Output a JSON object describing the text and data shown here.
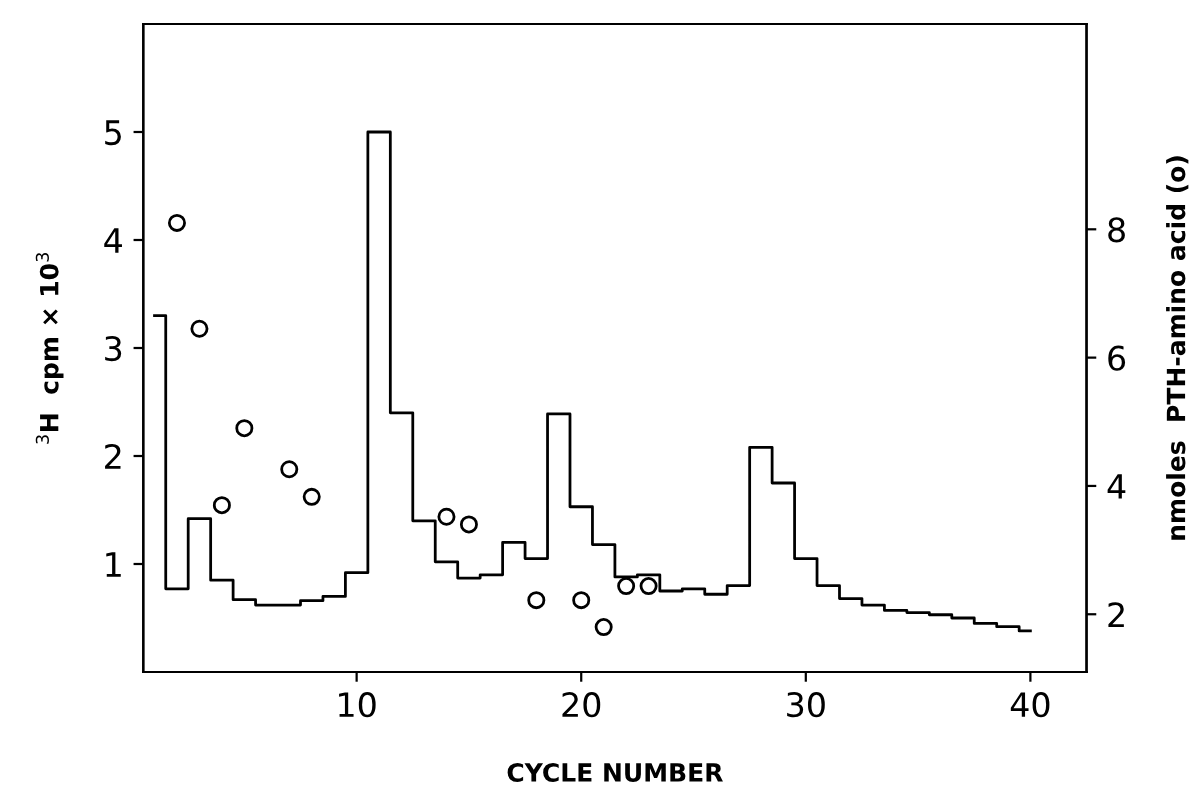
{
  "chart_data": {
    "type": "step",
    "xlabel": "CYCLE NUMBER",
    "ylabel": "$^{3}$H  cpm × 10$^{3}$",
    "y2label": "nmoles  PTH-amino acid (o)",
    "xlim": [
      0.5,
      42.5
    ],
    "xticks": [
      10,
      20,
      30,
      40
    ],
    "ylim": [
      0,
      6
    ],
    "yticks": [
      1,
      2,
      3,
      4,
      5
    ],
    "y2lim": [
      1.1,
      11.2
    ],
    "y2ticks": [
      2,
      4,
      6,
      8
    ],
    "grid": false,
    "legend": false,
    "series": [
      {
        "color": "#000000",
        "marker": "none",
        "line_style": "solid",
        "x": [
          1,
          2,
          3,
          4,
          5,
          6,
          7,
          8,
          9,
          10,
          11,
          12,
          13,
          14,
          15,
          16,
          17,
          18,
          19,
          20,
          21,
          22,
          23,
          24,
          25,
          26,
          27,
          28,
          29,
          30,
          31,
          32,
          33,
          34,
          35,
          36,
          37,
          38,
          39,
          40
        ],
        "values": [
          3.3,
          0.77,
          1.42,
          0.85,
          0.67,
          0.62,
          0.62,
          0.66,
          0.7,
          0.92,
          5.0,
          2.4,
          1.4,
          1.02,
          0.87,
          0.9,
          1.2,
          1.05,
          2.39,
          1.53,
          1.18,
          0.88,
          0.9,
          0.75,
          0.77,
          0.72,
          0.8,
          2.08,
          1.75,
          1.05,
          0.8,
          0.68,
          0.62,
          0.57,
          0.55,
          0.53,
          0.5,
          0.45,
          0.42,
          0.38
        ]
      },
      {
        "type": "scatter",
        "axis": "y2",
        "color": "#000000",
        "marker": "circle",
        "x": [
          2,
          3,
          4,
          5,
          7,
          8,
          14,
          15,
          18,
          20,
          21,
          22,
          23
        ],
        "values": [
          8.1,
          6.45,
          3.7,
          4.9,
          4.26,
          3.83,
          3.52,
          3.4,
          2.22,
          2.22,
          1.8,
          2.44,
          2.44
        ]
      }
    ]
  }
}
